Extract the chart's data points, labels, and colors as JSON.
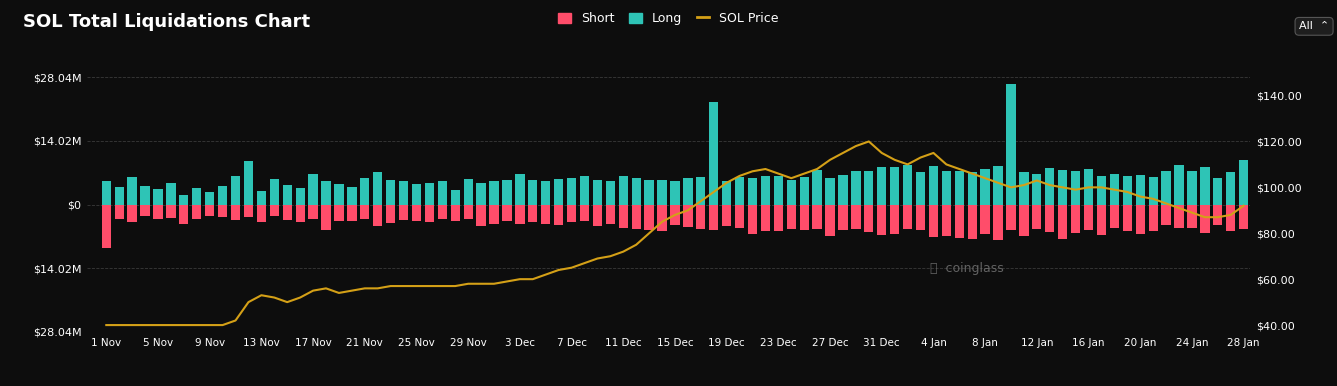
{
  "title": "SOL Total Liquidations Chart",
  "background_color": "#0d0d0d",
  "text_color": "#ffffff",
  "short_color": "#ff4d6a",
  "long_color": "#2ec4b6",
  "price_color": "#d4a017",
  "right_yticks": [
    40,
    60,
    80,
    100,
    120,
    140
  ],
  "right_yticklabels": [
    "$40.00",
    "$60.00",
    "$80.00",
    "$100.00",
    "$120.00",
    "$140.00"
  ],
  "xlabel_dates": [
    "1 Nov",
    "5 Nov",
    "9 Nov",
    "13 Nov",
    "17 Nov",
    "21 Nov",
    "25 Nov",
    "29 Nov",
    "3 Dec",
    "7 Dec",
    "11 Dec",
    "15 Dec",
    "19 Dec",
    "23 Dec",
    "27 Dec",
    "31 Dec",
    "4 Jan",
    "8 Jan",
    "12 Jan",
    "16 Jan",
    "20 Jan",
    "24 Jan",
    "28 Jan"
  ],
  "legend_items": [
    "Short",
    "Long",
    "SOL Price"
  ],
  "long_vals": [
    5.2,
    3.8,
    6.1,
    4.2,
    3.5,
    4.8,
    2.1,
    3.6,
    2.8,
    4.1,
    6.2,
    9.5,
    2.9,
    5.7,
    4.3,
    3.6,
    6.8,
    5.2,
    4.6,
    3.9,
    5.8,
    7.2,
    5.4,
    5.1,
    4.5,
    4.8,
    5.2,
    3.3,
    5.6,
    4.8,
    5.1,
    5.5,
    6.8,
    5.4,
    5.2,
    5.6,
    5.9,
    6.2,
    5.4,
    5.1,
    6.3,
    5.8,
    5.5,
    5.4,
    5.2,
    5.8,
    6.1,
    22.5,
    5.3,
    6.1,
    5.8,
    6.4,
    6.2,
    5.5,
    6.1,
    7.7,
    5.9,
    6.5,
    7.3,
    7.4,
    8.2,
    8.2,
    8.8,
    7.1,
    8.6,
    7.3,
    7.4,
    7.2,
    7.8,
    8.5,
    26.5,
    7.2,
    6.8,
    8.1,
    7.6,
    7.3,
    7.9,
    6.2,
    6.8,
    6.4,
    6.6,
    6.1,
    7.3,
    8.7,
    7.5,
    8.3,
    5.9,
    7.1,
    9.8
  ],
  "short_vals": [
    -9.5,
    -3.2,
    -3.8,
    -2.6,
    -3.1,
    -2.9,
    -4.2,
    -3.1,
    -2.5,
    -2.8,
    -3.3,
    -2.7,
    -3.9,
    -2.6,
    -3.3,
    -3.8,
    -3.2,
    -5.5,
    -3.6,
    -3.7,
    -3.2,
    -4.8,
    -4.1,
    -3.3,
    -3.6,
    -3.8,
    -3.2,
    -3.6,
    -3.1,
    -4.8,
    -4.2,
    -3.6,
    -4.3,
    -3.8,
    -4.2,
    -4.4,
    -3.9,
    -3.7,
    -4.8,
    -4.3,
    -5.1,
    -5.3,
    -5.5,
    -5.8,
    -4.4,
    -4.9,
    -5.3,
    -5.6,
    -4.8,
    -5.2,
    -6.5,
    -5.9,
    -5.8,
    -5.4,
    -5.6,
    -5.3,
    -6.9,
    -5.7,
    -5.4,
    -6.1,
    -6.8,
    -6.5,
    -5.3,
    -5.7,
    -7.2,
    -6.9,
    -7.3,
    -7.5,
    -6.4,
    -7.8,
    -5.6,
    -6.9,
    -5.4,
    -6.1,
    -7.5,
    -6.3,
    -5.7,
    -6.8,
    -5.2,
    -5.9,
    -6.4,
    -5.8,
    -4.5,
    -5.2,
    -5.1,
    -6.3,
    -4.6,
    -5.9,
    -5.3
  ],
  "sol_price": [
    40,
    40,
    40,
    40,
    40,
    40,
    40,
    40,
    40,
    40,
    42,
    50,
    53,
    52,
    50,
    52,
    55,
    56,
    54,
    55,
    56,
    56,
    57,
    57,
    57,
    57,
    57,
    57,
    58,
    58,
    58,
    59,
    60,
    60,
    62,
    64,
    65,
    67,
    69,
    70,
    72,
    75,
    80,
    85,
    88,
    90,
    94,
    98,
    102,
    105,
    107,
    108,
    106,
    104,
    106,
    108,
    112,
    115,
    118,
    120,
    115,
    112,
    110,
    113,
    115,
    110,
    108,
    106,
    104,
    102,
    100,
    101,
    103,
    101,
    100,
    99,
    100,
    100,
    99,
    98,
    96,
    95,
    93,
    91,
    89,
    87,
    87,
    88,
    92
  ]
}
